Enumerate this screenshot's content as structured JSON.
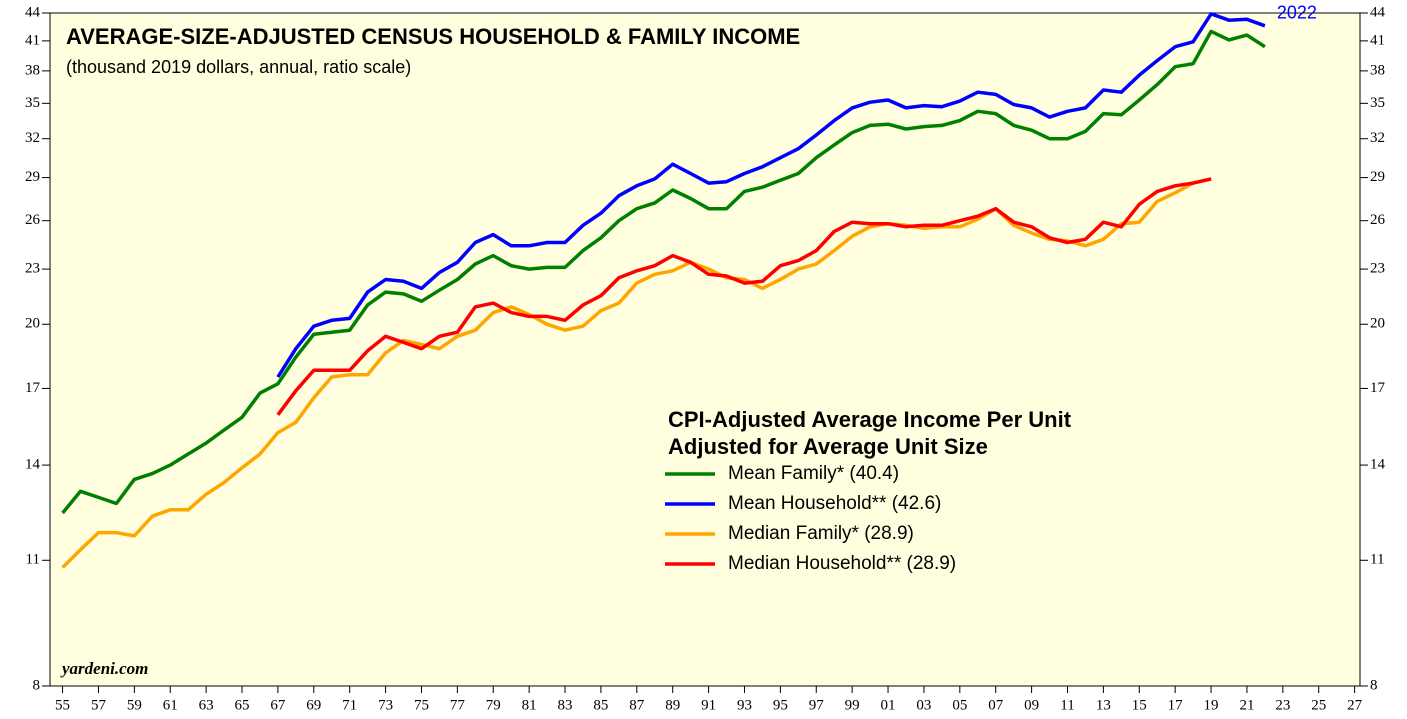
{
  "chart_data": {
    "type": "line",
    "title": "AVERAGE-SIZE-ADJUSTED CENSUS HOUSEHOLD & FAMILY INCOME",
    "subtitle": "(thousand 2019 dollars, annual, ratio scale)",
    "legend_title": [
      "CPI-Adjusted Average Income Per Unit",
      "Adjusted for Average Unit Size"
    ],
    "annotation": "2022",
    "source": "yardeni.com",
    "log_scale": true,
    "x": [
      1955,
      1956,
      1957,
      1958,
      1959,
      1960,
      1961,
      1962,
      1963,
      1964,
      1965,
      1966,
      1967,
      1968,
      1969,
      1970,
      1971,
      1972,
      1973,
      1974,
      1975,
      1976,
      1977,
      1978,
      1979,
      1980,
      1981,
      1982,
      1983,
      1984,
      1985,
      1986,
      1987,
      1988,
      1989,
      1990,
      1991,
      1992,
      1993,
      1994,
      1995,
      1996,
      1997,
      1998,
      1999,
      2000,
      2001,
      2002,
      2003,
      2004,
      2005,
      2006,
      2007,
      2008,
      2009,
      2010,
      2011,
      2012,
      2013,
      2014,
      2015,
      2016,
      2017,
      2018,
      2019,
      2020,
      2021,
      2022
    ],
    "series": [
      {
        "name": "Mean Family* (40.4)",
        "color": "#008000",
        "values": [
          12.4,
          13.1,
          12.9,
          12.7,
          13.5,
          13.7,
          14.0,
          14.4,
          14.8,
          15.3,
          15.8,
          16.8,
          17.2,
          18.4,
          19.5,
          19.6,
          19.7,
          21.0,
          21.7,
          21.6,
          21.2,
          21.8,
          22.4,
          23.3,
          23.8,
          23.2,
          23.0,
          23.1,
          23.1,
          24.1,
          24.9,
          26.0,
          26.8,
          27.2,
          28.1,
          27.5,
          26.8,
          26.8,
          28.0,
          28.3,
          28.8,
          29.3,
          30.5,
          31.5,
          32.5,
          33.1,
          33.2,
          32.8,
          33.0,
          33.1,
          33.5,
          34.3,
          34.1,
          33.1,
          32.7,
          32.0,
          32.0,
          32.6,
          34.1,
          34.0,
          35.3,
          36.7,
          38.4,
          38.7,
          42.0,
          41.1,
          41.6,
          40.4
        ]
      },
      {
        "name": "Mean Household** (42.6)",
        "color": "#0000ff",
        "values": [
          null,
          null,
          null,
          null,
          null,
          null,
          null,
          null,
          null,
          null,
          null,
          null,
          17.5,
          18.8,
          19.9,
          20.2,
          20.3,
          21.7,
          22.4,
          22.3,
          21.9,
          22.8,
          23.4,
          24.6,
          25.1,
          24.4,
          24.4,
          24.6,
          24.6,
          25.7,
          26.5,
          27.7,
          28.4,
          28.9,
          30.0,
          29.3,
          28.6,
          28.7,
          29.3,
          29.8,
          30.5,
          31.2,
          32.3,
          33.5,
          34.6,
          35.1,
          35.3,
          34.6,
          34.8,
          34.7,
          35.2,
          36.0,
          35.8,
          34.9,
          34.6,
          33.8,
          34.3,
          34.6,
          36.2,
          36.0,
          37.6,
          39.0,
          40.4,
          40.9,
          43.9,
          43.2,
          43.3,
          42.6
        ]
      },
      {
        "name": "Median Family* (28.9)",
        "color": "#ffa500",
        "values": [
          10.8,
          11.3,
          11.8,
          11.8,
          11.7,
          12.3,
          12.5,
          12.5,
          13.0,
          13.4,
          13.9,
          14.4,
          15.2,
          15.6,
          16.6,
          17.5,
          17.6,
          17.6,
          18.6,
          19.2,
          19.0,
          18.8,
          19.4,
          19.7,
          20.6,
          20.9,
          20.5,
          20.0,
          19.7,
          19.9,
          20.7,
          21.1,
          22.2,
          22.7,
          22.9,
          23.4,
          23.0,
          22.5,
          22.4,
          21.9,
          22.4,
          23.0,
          23.3,
          24.1,
          25.0,
          25.6,
          25.8,
          25.7,
          25.5,
          25.6,
          25.6,
          26.1,
          26.8,
          25.7,
          25.2,
          24.8,
          24.7,
          24.4,
          24.8,
          25.8,
          25.9,
          27.3,
          27.9,
          28.6,
          28.9,
          null,
          null,
          null
        ]
      },
      {
        "name": "Median Household** (28.9)",
        "color": "#ff0000",
        "values": [
          null,
          null,
          null,
          null,
          null,
          null,
          null,
          null,
          null,
          null,
          null,
          null,
          15.9,
          16.9,
          17.8,
          17.8,
          17.8,
          18.7,
          19.4,
          19.1,
          18.8,
          19.4,
          19.6,
          20.9,
          21.1,
          20.6,
          20.4,
          20.4,
          20.2,
          21.0,
          21.5,
          22.5,
          22.9,
          23.2,
          23.8,
          23.4,
          22.7,
          22.6,
          22.2,
          22.3,
          23.2,
          23.5,
          24.1,
          25.3,
          25.9,
          25.8,
          25.8,
          25.6,
          25.7,
          25.7,
          26.0,
          26.3,
          26.8,
          25.9,
          25.6,
          24.9,
          24.6,
          24.8,
          25.9,
          25.6,
          27.1,
          28.0,
          28.4,
          28.6,
          28.9,
          null,
          null,
          null
        ]
      }
    ],
    "xlim": [
      1954.3,
      2027.3
    ],
    "xticks": [
      {
        "value": 1955,
        "label": "55"
      },
      {
        "value": 1957,
        "label": "57"
      },
      {
        "value": 1959,
        "label": "59"
      },
      {
        "value": 1961,
        "label": "61"
      },
      {
        "value": 1963,
        "label": "63"
      },
      {
        "value": 1965,
        "label": "65"
      },
      {
        "value": 1967,
        "label": "67"
      },
      {
        "value": 1969,
        "label": "69"
      },
      {
        "value": 1971,
        "label": "71"
      },
      {
        "value": 1973,
        "label": "73"
      },
      {
        "value": 1975,
        "label": "75"
      },
      {
        "value": 1977,
        "label": "77"
      },
      {
        "value": 1979,
        "label": "79"
      },
      {
        "value": 1981,
        "label": "81"
      },
      {
        "value": 1983,
        "label": "83"
      },
      {
        "value": 1985,
        "label": "85"
      },
      {
        "value": 1987,
        "label": "87"
      },
      {
        "value": 1989,
        "label": "89"
      },
      {
        "value": 1991,
        "label": "91"
      },
      {
        "value": 1993,
        "label": "93"
      },
      {
        "value": 1995,
        "label": "95"
      },
      {
        "value": 1997,
        "label": "97"
      },
      {
        "value": 1999,
        "label": "99"
      },
      {
        "value": 2001,
        "label": "01"
      },
      {
        "value": 2003,
        "label": "03"
      },
      {
        "value": 2005,
        "label": "05"
      },
      {
        "value": 2007,
        "label": "07"
      },
      {
        "value": 2009,
        "label": "09"
      },
      {
        "value": 2011,
        "label": "11"
      },
      {
        "value": 2013,
        "label": "13"
      },
      {
        "value": 2015,
        "label": "15"
      },
      {
        "value": 2017,
        "label": "17"
      },
      {
        "value": 2019,
        "label": "19"
      },
      {
        "value": 2021,
        "label": "21"
      },
      {
        "value": 2023,
        "label": "23"
      },
      {
        "value": 2025,
        "label": "25"
      },
      {
        "value": 2027,
        "label": "27"
      }
    ],
    "ylim": [
      8,
      44
    ],
    "yticks": [
      8,
      11,
      14,
      17,
      20,
      23,
      26,
      29,
      32,
      35,
      38,
      41,
      44
    ]
  }
}
